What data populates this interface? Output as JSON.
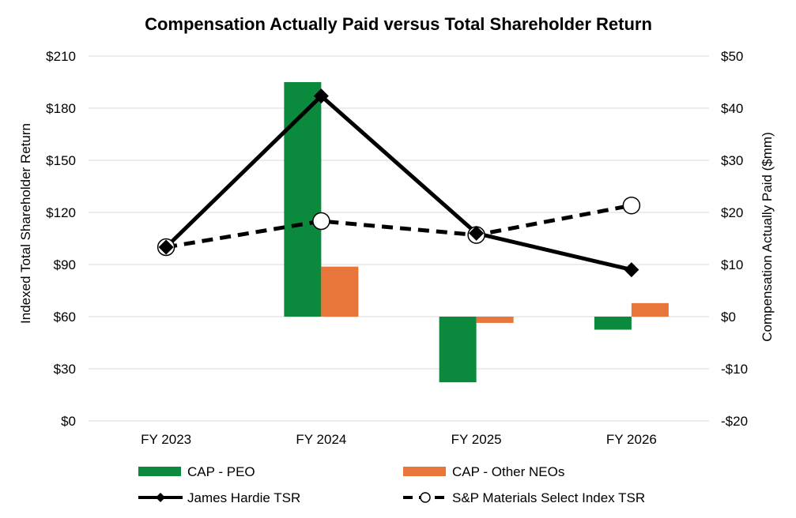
{
  "chart_data": {
    "type": "bar",
    "title": "Compensation Actually Paid versus Total Shareholder Return",
    "categories": [
      "FY 2023",
      "FY 2024",
      "FY 2025",
      "FY 2026"
    ],
    "y_left": {
      "label": "Indexed Total Shareholder Return",
      "range": [
        0,
        210
      ],
      "ticks": [
        0,
        30,
        60,
        90,
        120,
        150,
        180,
        210
      ],
      "tick_labels": [
        "$0",
        "$30",
        "$60",
        "$90",
        "$120",
        "$150",
        "$180",
        "$210"
      ]
    },
    "y_right": {
      "label": "Compensation Actually Paid ($mm)",
      "range": [
        -20,
        50
      ],
      "ticks": [
        -20,
        -10,
        0,
        10,
        20,
        30,
        40,
        50
      ],
      "tick_labels": [
        "-$20",
        "-$10",
        "$0",
        "$10",
        "$20",
        "$30",
        "$40",
        "$50"
      ]
    },
    "grid": true,
    "legend_position": "bottom",
    "series": [
      {
        "name": "CAP - PEO",
        "kind": "bar",
        "axis": "right",
        "color": "#0B8A3E",
        "values": [
          0,
          45,
          -12.6,
          -2.5
        ]
      },
      {
        "name": "CAP - Other NEOs",
        "kind": "bar",
        "axis": "right",
        "color": "#E8763A",
        "values": [
          0,
          9.6,
          -1.2,
          2.6
        ]
      },
      {
        "name": "James Hardie TSR",
        "kind": "line",
        "axis": "left",
        "color": "#000000",
        "dash": false,
        "marker": "diamond",
        "values": [
          100,
          187,
          108,
          87
        ]
      },
      {
        "name": "S&P Materials Select Index TSR",
        "kind": "line",
        "axis": "left",
        "color": "#000000",
        "dash": true,
        "marker": "circle",
        "values": [
          100,
          115,
          107,
          124
        ]
      }
    ]
  }
}
